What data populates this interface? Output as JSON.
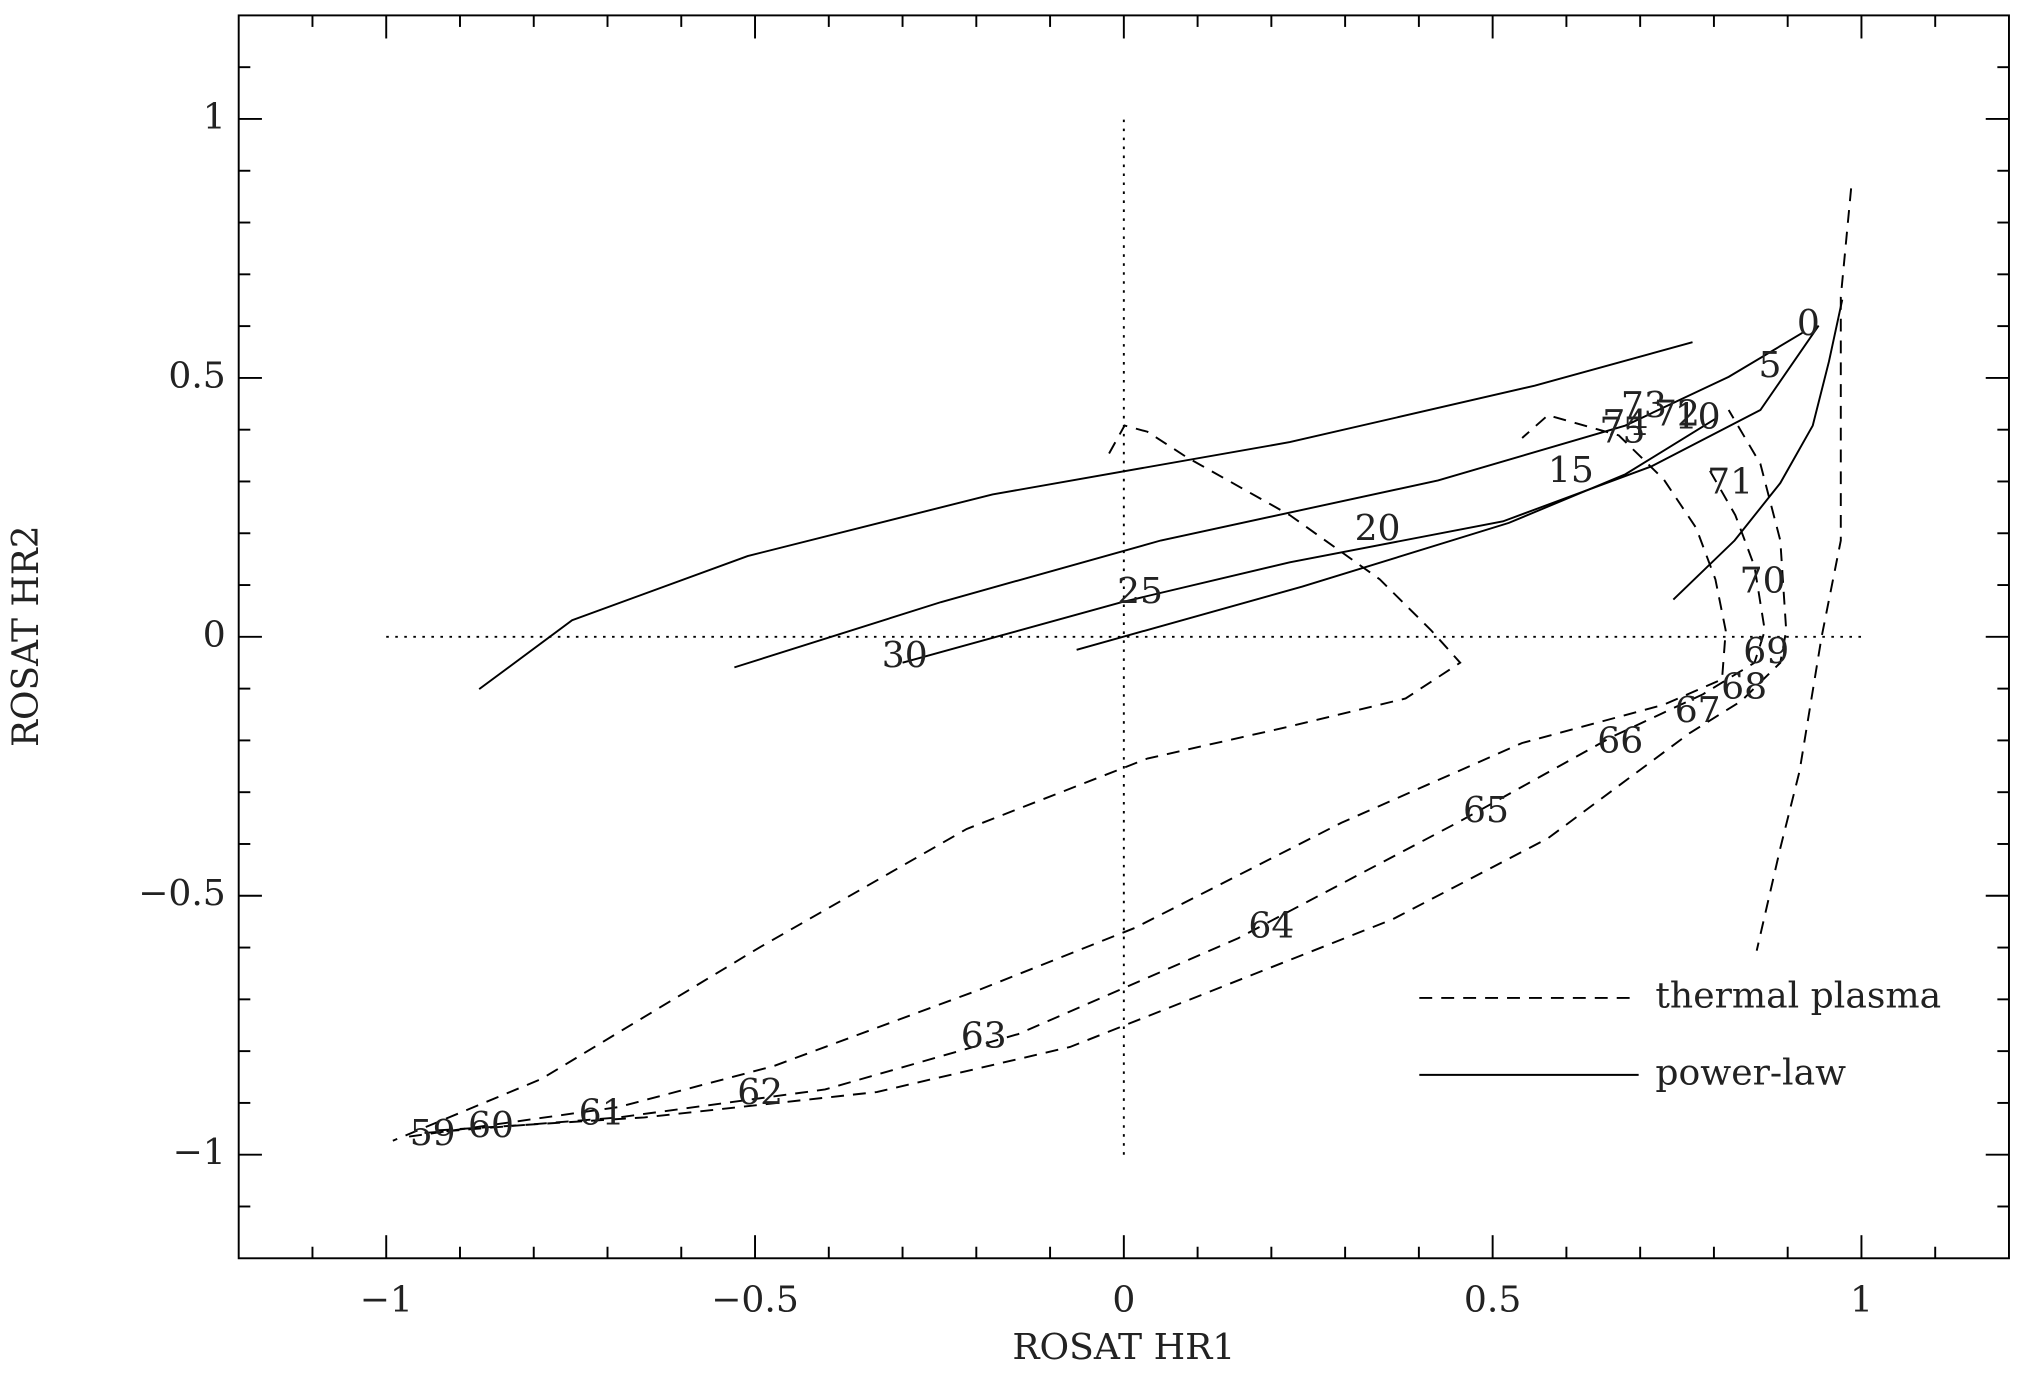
{
  "chart_data": {
    "type": "line",
    "xlabel": "ROSAT HR1",
    "ylabel": "ROSAT HR2",
    "xlim": [
      -1.2,
      1.2
    ],
    "ylim": [
      -1.2,
      1.2
    ],
    "xticks": [
      {
        "value": -1,
        "label": "−1"
      },
      {
        "value": -0.5,
        "label": "−0.5"
      },
      0,
      0.5,
      1
    ],
    "yticks": [
      {
        "value": -1,
        "label": "−1"
      },
      {
        "value": -0.5,
        "label": "−0.5"
      },
      0,
      0.5,
      1
    ],
    "xminorticks": [
      -1.1,
      -0.9,
      -0.8,
      -0.7,
      -0.6,
      -0.4,
      -0.3,
      -0.2,
      -0.1,
      0.1,
      0.2,
      0.3,
      0.4,
      0.6,
      0.7,
      0.8,
      0.9,
      1.1
    ],
    "yminorticks": [
      -1.1,
      -0.9,
      -0.8,
      -0.7,
      -0.6,
      -0.4,
      -0.3,
      -0.2,
      -0.1,
      0.1,
      0.2,
      0.3,
      0.4,
      0.6,
      0.7,
      0.8,
      0.9,
      1.1
    ],
    "reference_lines": [
      {
        "axis": "x",
        "value": 0,
        "from": -1,
        "to": 1
      },
      {
        "axis": "y",
        "value": 0,
        "from": -1,
        "to": 1
      }
    ],
    "legend": "lower right",
    "series": [
      {
        "name": "thermal plasma",
        "color": "#000000",
        "dashed": true,
        "curves": [
          {
            "x": [
              -0.02,
              0.001,
              0.032,
              0.085,
              0.225,
              0.347,
              0.417,
              0.456,
              0.382,
              0.225,
              0.032,
              -0.213,
              -0.493,
              -0.79,
              -0.991
            ],
            "y": [
              0.354,
              0.408,
              0.396,
              0.347,
              0.235,
              0.111,
              0.012,
              -0.05,
              -0.119,
              -0.173,
              -0.235,
              -0.371,
              -0.599,
              -0.854,
              -0.973
            ]
          },
          {
            "x": [
              -0.969,
              -0.685,
              -0.475,
              -0.195,
              0.015,
              0.295,
              0.54,
              0.732,
              0.811,
              0.816,
              0.802,
              0.776,
              0.732,
              0.671,
              0.575,
              0.54
            ],
            "y": [
              -0.965,
              -0.908,
              -0.829,
              -0.681,
              -0.562,
              -0.359,
              -0.205,
              -0.131,
              -0.082,
              0.012,
              0.111,
              0.21,
              0.304,
              0.389,
              0.428,
              0.384
            ]
          },
          {
            "x": [
              -0.948,
              -0.685,
              -0.405,
              -0.143,
              0.155,
              0.452,
              0.662,
              0.785,
              0.855,
              0.869,
              0.855,
              0.829,
              0.794
            ],
            "y": [
              -0.958,
              -0.928,
              -0.874,
              -0.767,
              -0.582,
              -0.359,
              -0.193,
              -0.111,
              -0.05,
              0.012,
              0.136,
              0.235,
              0.322
            ]
          },
          {
            "x": [
              -0.93,
              -0.65,
              -0.335,
              -0.073,
              0.365,
              0.575,
              0.767,
              0.837,
              0.89,
              0.898,
              0.89,
              0.863,
              0.82
            ],
            "y": [
              -0.953,
              -0.928,
              -0.879,
              -0.792,
              -0.545,
              -0.389,
              -0.186,
              -0.124,
              -0.05,
              0.012,
              0.186,
              0.334,
              0.438
            ]
          },
          {
            "x": [
              0.986,
              0.972,
              0.972,
              0.946,
              0.916,
              0.89,
              0.858
            ],
            "y": [
              0.866,
              0.656,
              0.186,
              0.0,
              -0.26,
              -0.408,
              -0.606
            ]
          }
        ]
      },
      {
        "name": "power-law",
        "color": "#000000",
        "dashed": false,
        "curves": [
          {
            "x": [
              -0.874,
              -0.748,
              -0.51,
              -0.178,
              0.225,
              0.557,
              0.771
            ],
            "y": [
              -0.101,
              0.032,
              0.156,
              0.275,
              0.376,
              0.485,
              0.569
            ]
          },
          {
            "x": [
              -0.528,
              -0.248,
              0.05,
              0.426,
              0.68,
              0.82,
              0.92
            ],
            "y": [
              -0.059,
              0.067,
              0.186,
              0.302,
              0.408,
              0.502,
              0.587
            ]
          },
          {
            "x": [
              -0.3,
              -0.003,
              0.225,
              0.514,
              0.715,
              0.863,
              0.942
            ],
            "y": [
              -0.05,
              0.067,
              0.144,
              0.223,
              0.329,
              0.438,
              0.601
            ]
          },
          {
            "x": [
              -0.064,
              0.242,
              0.522,
              0.68,
              0.802
            ],
            "y": [
              -0.025,
              0.097,
              0.22,
              0.314,
              0.421
            ]
          },
          {
            "x": [
              0.745,
              0.828,
              0.89,
              0.934,
              0.956,
              0.974
            ],
            "y": [
              0.072,
              0.186,
              0.297,
              0.408,
              0.532,
              0.651
            ]
          }
        ]
      }
    ],
    "annotations": [
      {
        "text": "0",
        "x": 0.928,
        "y": 0.601
      },
      {
        "text": "5",
        "x": 0.876,
        "y": 0.52
      },
      {
        "text": "10",
        "x": 0.778,
        "y": 0.421
      },
      {
        "text": "15",
        "x": 0.606,
        "y": 0.317
      },
      {
        "text": "20",
        "x": 0.344,
        "y": 0.205
      },
      {
        "text": "25",
        "x": 0.022,
        "y": 0.084
      },
      {
        "text": "30",
        "x": -0.297,
        "y": -0.04
      },
      {
        "text": "59",
        "x": -0.937,
        "y": -0.963
      },
      {
        "text": "60",
        "x": -0.858,
        "y": -0.948
      },
      {
        "text": "61",
        "x": -0.708,
        "y": -0.923
      },
      {
        "text": "62",
        "x": -0.493,
        "y": -0.884
      },
      {
        "text": "63",
        "x": -0.19,
        "y": -0.775
      },
      {
        "text": "64",
        "x": 0.2,
        "y": -0.562
      },
      {
        "text": "65",
        "x": 0.491,
        "y": -0.339
      },
      {
        "text": "66",
        "x": 0.673,
        "y": -0.205
      },
      {
        "text": "67",
        "x": 0.778,
        "y": -0.146
      },
      {
        "text": "68",
        "x": 0.841,
        "y": -0.101
      },
      {
        "text": "69",
        "x": 0.871,
        "y": -0.032
      },
      {
        "text": "70",
        "x": 0.866,
        "y": 0.104
      },
      {
        "text": "71",
        "x": 0.822,
        "y": 0.295
      },
      {
        "text": "72",
        "x": 0.75,
        "y": 0.426
      },
      {
        "text": "73",
        "x": 0.705,
        "y": 0.443
      },
      {
        "text": "74",
        "x": 0.68,
        "y": 0.408
      },
      {
        "text": "75",
        "x": 0.676,
        "y": 0.394
      }
    ]
  }
}
